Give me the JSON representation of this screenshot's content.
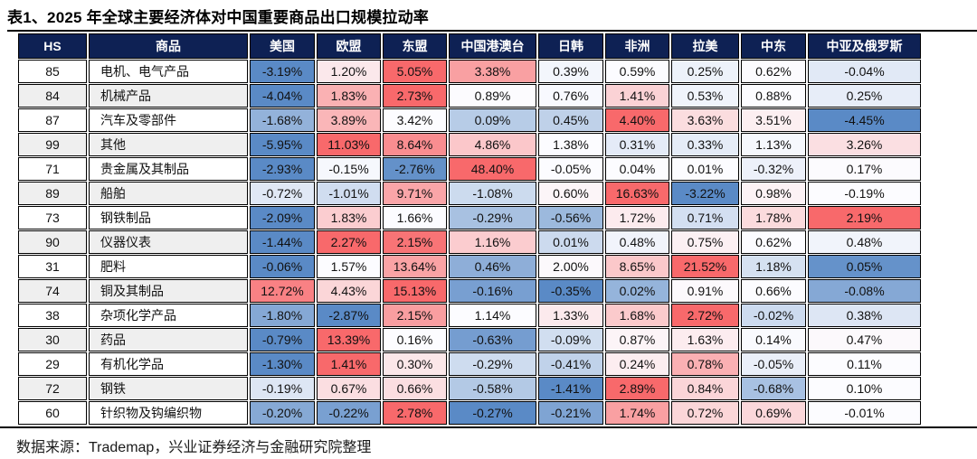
{
  "title": "表1、2025 年全球主要经济体对中国重要商品出口规模拉动率",
  "table": {
    "columns": [
      "HS",
      "商品",
      "美国",
      "欧盟",
      "东盟",
      "中国港澳台",
      "日韩",
      "非洲",
      "拉美",
      "中东",
      "中亚及俄罗斯"
    ],
    "rows": [
      {
        "hs": "85",
        "product": "电机、电气产品",
        "values": [
          "-3.19%",
          "1.20%",
          "5.05%",
          "3.38%",
          "0.39%",
          "0.59%",
          "0.25%",
          "0.62%",
          "-0.04%"
        ]
      },
      {
        "hs": "84",
        "product": "机械产品",
        "values": [
          "-4.04%",
          "1.83%",
          "2.73%",
          "0.89%",
          "0.76%",
          "1.41%",
          "0.53%",
          "0.88%",
          "0.25%"
        ]
      },
      {
        "hs": "87",
        "product": "汽车及零部件",
        "values": [
          "-1.68%",
          "3.89%",
          "3.42%",
          "0.09%",
          "0.45%",
          "4.40%",
          "3.63%",
          "3.51%",
          "-4.45%"
        ]
      },
      {
        "hs": "99",
        "product": "其他",
        "values": [
          "-5.95%",
          "11.03%",
          "8.64%",
          "4.86%",
          "1.38%",
          "0.31%",
          "0.33%",
          "1.13%",
          "3.26%"
        ]
      },
      {
        "hs": "71",
        "product": "贵金属及其制品",
        "values": [
          "-2.93%",
          "-0.15%",
          "-2.76%",
          "48.40%",
          "-0.05%",
          "0.04%",
          "0.01%",
          "-0.32%",
          "0.17%"
        ]
      },
      {
        "hs": "89",
        "product": "船舶",
        "values": [
          "-0.72%",
          "-1.01%",
          "9.71%",
          "-1.08%",
          "0.60%",
          "16.63%",
          "-3.22%",
          "0.98%",
          "-0.19%"
        ]
      },
      {
        "hs": "73",
        "product": "钢铁制品",
        "values": [
          "-2.09%",
          "1.83%",
          "1.66%",
          "-0.29%",
          "-0.56%",
          "1.72%",
          "0.71%",
          "1.78%",
          "2.19%"
        ]
      },
      {
        "hs": "90",
        "product": "仪器仪表",
        "values": [
          "-1.44%",
          "2.27%",
          "2.15%",
          "1.16%",
          "0.01%",
          "0.48%",
          "0.75%",
          "0.62%",
          "0.48%"
        ]
      },
      {
        "hs": "31",
        "product": "肥料",
        "values": [
          "-0.06%",
          "1.57%",
          "13.64%",
          "0.46%",
          "2.00%",
          "8.65%",
          "21.52%",
          "1.18%",
          "0.05%"
        ]
      },
      {
        "hs": "74",
        "product": "铜及其制品",
        "values": [
          "12.72%",
          "4.43%",
          "15.13%",
          "-0.16%",
          "-0.35%",
          "0.02%",
          "0.91%",
          "0.66%",
          "-0.08%"
        ]
      },
      {
        "hs": "38",
        "product": "杂项化学产品",
        "values": [
          "-1.80%",
          "-2.87%",
          "2.15%",
          "1.14%",
          "1.33%",
          "1.68%",
          "2.72%",
          "-0.02%",
          "0.38%"
        ]
      },
      {
        "hs": "30",
        "product": "药品",
        "values": [
          "-0.79%",
          "13.39%",
          "0.16%",
          "-0.63%",
          "-0.09%",
          "0.87%",
          "1.63%",
          "0.14%",
          "0.47%"
        ]
      },
      {
        "hs": "29",
        "product": "有机化学品",
        "values": [
          "-1.30%",
          "1.41%",
          "0.30%",
          "-0.29%",
          "-0.41%",
          "0.24%",
          "0.78%",
          "-0.05%",
          "0.11%"
        ]
      },
      {
        "hs": "72",
        "product": "钢铁",
        "values": [
          "-0.19%",
          "0.67%",
          "0.66%",
          "-0.58%",
          "-1.41%",
          "2.89%",
          "0.84%",
          "-0.68%",
          "0.10%"
        ]
      },
      {
        "hs": "60",
        "product": "针织物及钩编织物",
        "values": [
          "-0.20%",
          "-0.22%",
          "2.78%",
          "-0.27%",
          "-0.21%",
          "1.74%",
          "0.72%",
          "0.69%",
          "-0.01%"
        ]
      }
    ]
  },
  "heatmap": {
    "header_bg": "#0e2154",
    "low_color": "#5A8AC6",
    "mid_color": "#FCFCFF",
    "high_color": "#F8696B"
  },
  "source_note": "数据来源：Trademap，兴业证券经济与金融研究院整理"
}
